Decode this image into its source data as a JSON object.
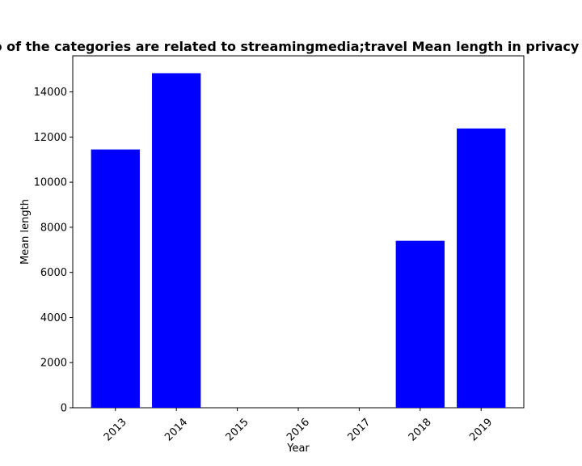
{
  "chart_data": {
    "type": "bar",
    "title": "Ratio of the categories are related to streamingmedia;travel Mean length in privacy policies",
    "xlabel": "Year",
    "ylabel": "Mean length",
    "categories": [
      "2013",
      "2014",
      "2015",
      "2016",
      "2017",
      "2018",
      "2019"
    ],
    "values": [
      11450,
      14830,
      0,
      0,
      0,
      7400,
      12380
    ],
    "ylim": [
      0,
      15600
    ],
    "yticks": [
      0,
      2000,
      4000,
      6000,
      8000,
      10000,
      12000,
      14000
    ],
    "bar_color": "#0000ff",
    "grid": false,
    "legend": false
  }
}
